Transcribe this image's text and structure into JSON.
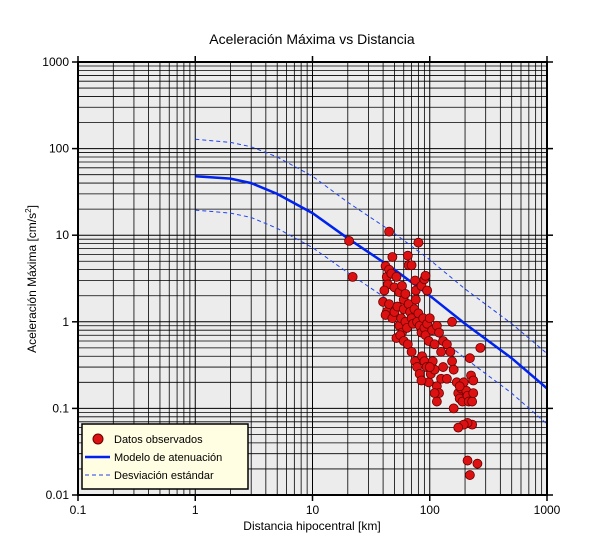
{
  "chart_data": {
    "type": "scatter",
    "title": "Aceleración Máxima vs Distancia",
    "xlabel": "Distancia hipocentral [km]",
    "ylabel": {
      "base": "Aceleración Máxima [cm/s",
      "sup": "2",
      "close": "]"
    },
    "xscale": "log",
    "yscale": "log",
    "xlim": [
      0.1,
      1000
    ],
    "ylim": [
      0.01,
      1000
    ],
    "grid": true,
    "legend_position": "bottom-left",
    "x_tick_labels": [
      "0.1",
      "1",
      "10",
      "100",
      "1000"
    ],
    "y_tick_labels": [
      "0.01",
      "0.1",
      "1",
      "10",
      "100",
      "1000"
    ],
    "colors": {
      "plot_background": "#ececec",
      "grid": "#000000",
      "points": "#dd1111",
      "point_edge": "#660000",
      "model": "#0022ee",
      "deviation": "#2244ee",
      "legend_background": "#fffde2"
    },
    "series": [
      {
        "name": "Datos observados",
        "kind": "scatter",
        "points": [
          [
            20.5,
            8.6
          ],
          [
            22,
            3.3
          ],
          [
            45,
            11
          ],
          [
            48,
            5.6
          ],
          [
            42,
            4.4
          ],
          [
            43,
            3.3
          ],
          [
            45,
            4.0
          ],
          [
            47,
            3.6
          ],
          [
            44,
            2.7
          ],
          [
            41,
            2.3
          ],
          [
            50,
            2.5
          ],
          [
            52,
            3.3
          ],
          [
            55,
            2.2
          ],
          [
            58,
            2.6
          ],
          [
            60,
            1.8
          ],
          [
            62,
            2.1
          ],
          [
            65,
            5.8
          ],
          [
            66,
            4.5
          ],
          [
            70,
            4.5
          ],
          [
            75,
            3.0
          ],
          [
            76,
            2.3
          ],
          [
            80,
            8.2
          ],
          [
            85,
            2.6
          ],
          [
            90,
            3.1
          ],
          [
            92,
            3.4
          ],
          [
            95,
            2.3
          ],
          [
            40,
            1.7
          ],
          [
            43,
            1.3
          ],
          [
            45,
            1.6
          ],
          [
            42,
            1.2
          ],
          [
            48,
            1.1
          ],
          [
            50,
            1.3
          ],
          [
            53,
            1.5
          ],
          [
            55,
            0.9
          ],
          [
            57,
            1.1
          ],
          [
            58,
            0.75
          ],
          [
            60,
            1.4
          ],
          [
            62,
            1.0
          ],
          [
            64,
            0.85
          ],
          [
            66,
            1.6
          ],
          [
            68,
            1.3
          ],
          [
            70,
            1.1
          ],
          [
            72,
            0.95
          ],
          [
            74,
            1.4
          ],
          [
            76,
            1.8
          ],
          [
            78,
            1.0
          ],
          [
            80,
            1.25
          ],
          [
            82,
            0.9
          ],
          [
            85,
            0.75
          ],
          [
            88,
            1.1
          ],
          [
            90,
            0.85
          ],
          [
            92,
            0.7
          ],
          [
            95,
            0.95
          ],
          [
            98,
            0.6
          ],
          [
            100,
            1.1
          ],
          [
            105,
            0.8
          ],
          [
            110,
            0.55
          ],
          [
            115,
            0.9
          ],
          [
            120,
            0.75
          ],
          [
            125,
            0.45
          ],
          [
            130,
            0.6
          ],
          [
            52,
            0.65
          ],
          [
            56,
            0.7
          ],
          [
            60,
            0.6
          ],
          [
            65,
            0.55
          ],
          [
            70,
            0.45
          ],
          [
            75,
            0.35
          ],
          [
            78,
            0.3
          ],
          [
            82,
            0.25
          ],
          [
            86,
            0.4
          ],
          [
            90,
            0.35
          ],
          [
            94,
            0.3
          ],
          [
            98,
            0.2
          ],
          [
            102,
            0.25
          ],
          [
            106,
            0.35
          ],
          [
            110,
            0.28
          ],
          [
            115,
            0.18
          ],
          [
            120,
            0.15
          ],
          [
            125,
            0.22
          ],
          [
            130,
            0.3
          ],
          [
            140,
            0.55
          ],
          [
            150,
            0.45
          ],
          [
            155,
            0.35
          ],
          [
            160,
            0.28
          ],
          [
            170,
            0.2
          ],
          [
            175,
            0.15
          ],
          [
            180,
            0.13
          ],
          [
            185,
            0.17
          ],
          [
            190,
            0.12
          ],
          [
            195,
            0.2
          ],
          [
            205,
            0.16
          ],
          [
            210,
            0.14
          ],
          [
            215,
            0.12
          ],
          [
            220,
            0.38
          ],
          [
            225,
            0.24
          ],
          [
            230,
            0.12
          ],
          [
            235,
            0.15
          ],
          [
            230,
            0.065
          ],
          [
            210,
            0.068
          ],
          [
            195,
            0.065
          ],
          [
            175,
            0.06
          ],
          [
            160,
            0.1
          ],
          [
            115,
            0.12
          ],
          [
            110,
            0.15
          ],
          [
            155,
            1.0
          ],
          [
            235,
            0.21
          ],
          [
            270,
            0.5
          ],
          [
            210,
            0.025
          ],
          [
            255,
            0.023
          ],
          [
            220,
            0.017
          ],
          [
            100,
            0.3
          ],
          [
            85,
            0.21
          ],
          [
            140,
            0.22
          ],
          [
            180,
            0.18
          ]
        ]
      },
      {
        "name": "Modelo de atenuación",
        "kind": "line",
        "points": [
          [
            1,
            48
          ],
          [
            2,
            45
          ],
          [
            3,
            40
          ],
          [
            5,
            30
          ],
          [
            10,
            18
          ],
          [
            20,
            9.2
          ],
          [
            50,
            4.0
          ],
          [
            100,
            2.0
          ],
          [
            200,
            0.95
          ],
          [
            500,
            0.38
          ],
          [
            1000,
            0.17
          ]
        ]
      },
      {
        "name": "Desviación estándar",
        "kind": "band",
        "upper": [
          [
            1,
            128
          ],
          [
            2,
            118
          ],
          [
            3,
            105
          ],
          [
            5,
            80
          ],
          [
            10,
            48
          ],
          [
            20,
            24
          ],
          [
            50,
            10.5
          ],
          [
            100,
            5.2
          ],
          [
            200,
            2.4
          ],
          [
            500,
            0.95
          ],
          [
            1000,
            0.43
          ]
        ],
        "lower": [
          [
            1,
            19.5
          ],
          [
            2,
            18
          ],
          [
            3,
            16
          ],
          [
            5,
            12
          ],
          [
            10,
            7.2
          ],
          [
            20,
            3.7
          ],
          [
            50,
            1.6
          ],
          [
            100,
            0.8
          ],
          [
            200,
            0.38
          ],
          [
            500,
            0.15
          ],
          [
            1000,
            0.066
          ]
        ]
      }
    ]
  }
}
